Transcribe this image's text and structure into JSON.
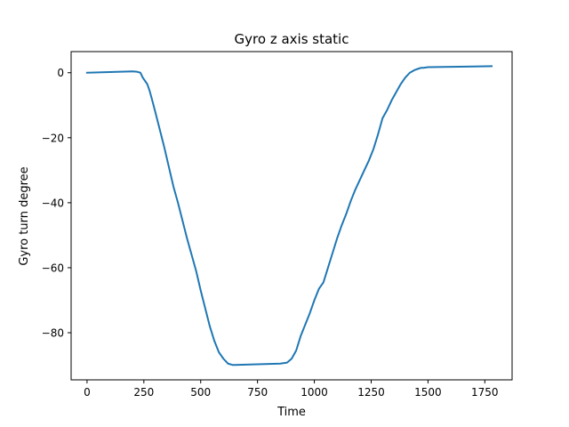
{
  "chart_data": {
    "type": "line",
    "title": "Gyro z axis static",
    "xlabel": "Time",
    "ylabel": "Gyro turn degree",
    "xlim": [
      -70,
      1870
    ],
    "ylim": [
      -94.5,
      6.5
    ],
    "xticks": [
      0,
      250,
      500,
      750,
      1000,
      1250,
      1500,
      1750
    ],
    "yticks": [
      0,
      -20,
      -40,
      -60,
      -80
    ],
    "xtick_labels": [
      "0",
      "250",
      "500",
      "750",
      "1000",
      "1250",
      "1500",
      "1750"
    ],
    "ytick_labels": [
      "0",
      "−20",
      "−40",
      "−60",
      "−80"
    ],
    "grid": false,
    "legend": "none",
    "series": [
      {
        "color": "#1f77b4",
        "x": [
          0,
          50,
          100,
          150,
          200,
          220,
          235,
          245,
          255,
          265,
          275,
          285,
          300,
          320,
          340,
          360,
          380,
          400,
          420,
          440,
          460,
          480,
          500,
          520,
          540,
          560,
          580,
          600,
          620,
          640,
          650,
          700,
          750,
          800,
          850,
          880,
          900,
          920,
          940,
          960,
          980,
          1000,
          1020,
          1040,
          1060,
          1080,
          1100,
          1120,
          1140,
          1160,
          1180,
          1200,
          1220,
          1240,
          1260,
          1280,
          1300,
          1320,
          1340,
          1360,
          1380,
          1400,
          1420,
          1440,
          1460,
          1470,
          1480,
          1490,
          1500,
          1600,
          1700,
          1780
        ],
        "y": [
          0,
          0.1,
          0.2,
          0.3,
          0.4,
          0.3,
          0.0,
          -1.5,
          -2.5,
          -3.5,
          -5.5,
          -8.0,
          -12.0,
          -17.5,
          -23.0,
          -29.0,
          -35.0,
          -40.0,
          -45.5,
          -51.0,
          -56.0,
          -61.0,
          -67.0,
          -72.5,
          -78.0,
          -82.5,
          -86.0,
          -88.0,
          -89.5,
          -89.9,
          -89.9,
          -89.8,
          -89.7,
          -89.6,
          -89.5,
          -89.2,
          -88.0,
          -85.5,
          -81.0,
          -77.5,
          -74.0,
          -70.0,
          -66.5,
          -64.5,
          -60.0,
          -55.5,
          -51.0,
          -47.0,
          -43.5,
          -39.5,
          -36.0,
          -33.0,
          -30.0,
          -27.0,
          -23.5,
          -19.0,
          -14.0,
          -11.5,
          -8.5,
          -6.0,
          -3.5,
          -1.5,
          0.0,
          0.8,
          1.3,
          1.5,
          1.5,
          1.6,
          1.7,
          1.8,
          1.9,
          2.0
        ]
      }
    ]
  }
}
